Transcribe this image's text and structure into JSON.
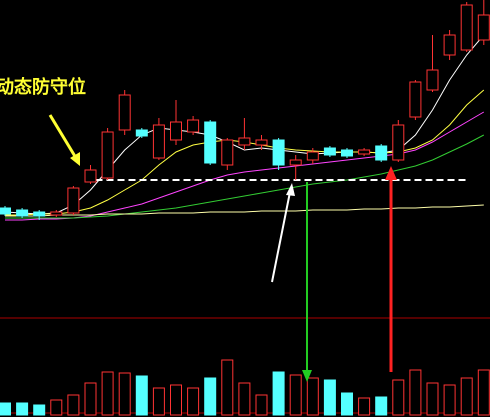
{
  "chart_data": {
    "type": "candlestick",
    "annotation": "动态防守位",
    "ylim": [
      0,
      300
    ],
    "volume_ylim": [
      0,
      95
    ],
    "defense_level": 120,
    "up_color": "#ff3333",
    "down_color": "#54ffff",
    "candles": [
      [
        92,
        94,
        84,
        86
      ],
      [
        90,
        92,
        82,
        84
      ],
      [
        88,
        90,
        80,
        84
      ],
      [
        85,
        90,
        83,
        88
      ],
      [
        87,
        114,
        85,
        112
      ],
      [
        118,
        135,
        116,
        130
      ],
      [
        122,
        172,
        120,
        168
      ],
      [
        170,
        210,
        165,
        205
      ],
      [
        170,
        172,
        162,
        164
      ],
      [
        142,
        182,
        140,
        175
      ],
      [
        160,
        200,
        155,
        178
      ],
      [
        168,
        184,
        165,
        180
      ],
      [
        178,
        180,
        135,
        137
      ],
      [
        135,
        162,
        130,
        160
      ],
      [
        155,
        182,
        150,
        162
      ],
      [
        155,
        165,
        150,
        160
      ],
      [
        160,
        162,
        130,
        135
      ],
      [
        135,
        145,
        120,
        140
      ],
      [
        140,
        152,
        136,
        148
      ],
      [
        152,
        154,
        143,
        145
      ],
      [
        150,
        152,
        142,
        144
      ],
      [
        146,
        152,
        144,
        150
      ],
      [
        154,
        156,
        138,
        140
      ],
      [
        140,
        180,
        138,
        175
      ],
      [
        183,
        220,
        180,
        218
      ],
      [
        210,
        265,
        208,
        230
      ],
      [
        245,
        270,
        240,
        265
      ],
      [
        250,
        298,
        248,
        295
      ],
      [
        260,
        300,
        255,
        285
      ]
    ],
    "volume": [
      12,
      12,
      10,
      15,
      20,
      32,
      43,
      42,
      39,
      27,
      30,
      27,
      37,
      55,
      32,
      20,
      43,
      40,
      37,
      35,
      22,
      17,
      18,
      35,
      45,
      32,
      30,
      37,
      45
    ],
    "series": [
      {
        "color": "#ffffff",
        "values": [
          88,
          87,
          86,
          87,
          95,
          110,
          130,
          150,
          165,
          172,
          170,
          168,
          165,
          158,
          150,
          152,
          150,
          148,
          146,
          147,
          148,
          148,
          147,
          150,
          165,
          190,
          220,
          245,
          265
        ]
      },
      {
        "color": "#ffff44",
        "values": [
          85,
          85,
          86,
          86,
          88,
          92,
          100,
          110,
          120,
          135,
          148,
          155,
          158,
          160,
          158,
          155,
          152,
          150,
          149,
          148,
          148,
          148,
          147,
          148,
          152,
          160,
          175,
          195,
          210
        ]
      },
      {
        "color": "#ff44ff",
        "values": [
          80,
          80,
          81,
          81,
          82,
          84,
          88,
          92,
          96,
          102,
          108,
          114,
          120,
          125,
          128,
          130,
          132,
          134,
          136,
          138,
          140,
          142,
          144,
          146,
          150,
          158,
          168,
          178,
          188
        ]
      },
      {
        "color": "#33cc33",
        "values": [
          82,
          82,
          82,
          82,
          82,
          83,
          84,
          86,
          88,
          90,
          92,
          95,
          98,
          101,
          104,
          107,
          110,
          113,
          116,
          118,
          120,
          123,
          126,
          130,
          134,
          140,
          148,
          156,
          165
        ]
      },
      {
        "color": "#ffffaa",
        "values": [
          84,
          84,
          84,
          85,
          85,
          85,
          86,
          86,
          86,
          87,
          87,
          87,
          88,
          88,
          88,
          89,
          89,
          89,
          90,
          90,
          90,
          91,
          91,
          92,
          92,
          93,
          93,
          94,
          95
        ]
      }
    ]
  }
}
